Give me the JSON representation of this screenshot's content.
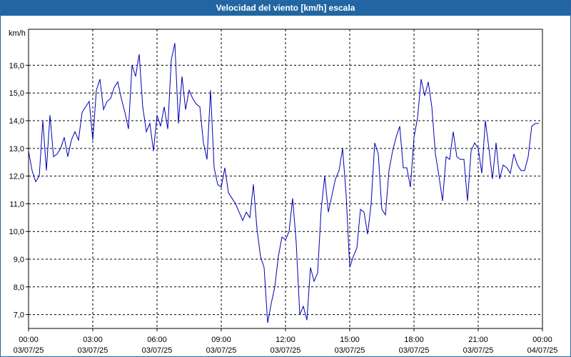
{
  "header": {
    "title": "Velocidad del viento [km/h] escala"
  },
  "chart_data": {
    "type": "line",
    "title": "Velocidad del viento [km/h] escala",
    "ylabel": "km/h",
    "xlabel": "",
    "ylim": [
      6.5,
      17.3
    ],
    "y_ticks": [
      "7,0",
      "8,0",
      "9,0",
      "10,0",
      "11,0",
      "12,0",
      "13,0",
      "14,0",
      "15,0",
      "16,0"
    ],
    "y_tick_values": [
      7,
      8,
      9,
      10,
      11,
      12,
      13,
      14,
      15,
      16
    ],
    "x_ticks": [
      {
        "time": "00:00",
        "date": "03/07/25"
      },
      {
        "time": "03:00",
        "date": "03/07/25"
      },
      {
        "time": "06:00",
        "date": "03/07/25"
      },
      {
        "time": "09:00",
        "date": "03/07/25"
      },
      {
        "time": "12:00",
        "date": "03/07/25"
      },
      {
        "time": "15:00",
        "date": "03/07/25"
      },
      {
        "time": "18:00",
        "date": "03/07/25"
      },
      {
        "time": "21:00",
        "date": "03/07/25"
      },
      {
        "time": "00:00",
        "date": "04/07/25"
      }
    ],
    "grid": true,
    "line_color": "#0000b4",
    "series": [
      {
        "values": [
          [
            "03/07/25 00:00",
            12.9
          ],
          [
            "03/07/25 00:10",
            12.2
          ],
          [
            "03/07/25 00:20",
            11.8
          ],
          [
            "03/07/25 00:30",
            12.0
          ],
          [
            "03/07/25 00:40",
            14.0
          ],
          [
            "03/07/25 00:50",
            12.2
          ],
          [
            "03/07/25 01:00",
            14.2
          ],
          [
            "03/07/25 01:10",
            12.7
          ],
          [
            "03/07/25 01:20",
            12.8
          ],
          [
            "03/07/25 01:30",
            13.0
          ],
          [
            "03/07/25 01:40",
            13.4
          ],
          [
            "03/07/25 01:50",
            12.7
          ],
          [
            "03/07/25 02:00",
            13.3
          ],
          [
            "03/07/25 02:10",
            13.6
          ],
          [
            "03/07/25 02:20",
            13.3
          ],
          [
            "03/07/25 02:30",
            14.3
          ],
          [
            "03/07/25 02:40",
            14.5
          ],
          [
            "03/07/25 02:50",
            14.7
          ],
          [
            "03/07/25 03:00",
            13.3
          ],
          [
            "03/07/25 03:10",
            15.1
          ],
          [
            "03/07/25 03:20",
            15.5
          ],
          [
            "03/07/25 03:30",
            14.4
          ],
          [
            "03/07/25 03:40",
            14.7
          ],
          [
            "03/07/25 03:50",
            14.8
          ],
          [
            "03/07/25 04:00",
            15.2
          ],
          [
            "03/07/25 04:10",
            15.4
          ],
          [
            "03/07/25 04:20",
            14.8
          ],
          [
            "03/07/25 04:30",
            14.3
          ],
          [
            "03/07/25 04:40",
            13.7
          ],
          [
            "03/07/25 04:50",
            16.0
          ],
          [
            "03/07/25 05:00",
            15.6
          ],
          [
            "03/07/25 05:10",
            16.4
          ],
          [
            "03/07/25 05:20",
            14.5
          ],
          [
            "03/07/25 05:30",
            13.6
          ],
          [
            "03/07/25 05:40",
            13.9
          ],
          [
            "03/07/25 05:50",
            12.9
          ],
          [
            "03/07/25 06:00",
            14.2
          ],
          [
            "03/07/25 06:10",
            13.8
          ],
          [
            "03/07/25 06:20",
            14.5
          ],
          [
            "03/07/25 06:30",
            13.7
          ],
          [
            "03/07/25 06:40",
            16.2
          ],
          [
            "03/07/25 06:50",
            16.8
          ],
          [
            "03/07/25 07:00",
            13.9
          ],
          [
            "03/07/25 07:10",
            15.6
          ],
          [
            "03/07/25 07:20",
            14.4
          ],
          [
            "03/07/25 07:30",
            15.1
          ],
          [
            "03/07/25 07:40",
            14.8
          ],
          [
            "03/07/25 07:50",
            14.6
          ],
          [
            "03/07/25 08:00",
            14.5
          ],
          [
            "03/07/25 08:10",
            13.2
          ],
          [
            "03/07/25 08:20",
            12.6
          ],
          [
            "03/07/25 08:30",
            15.1
          ],
          [
            "03/07/25 08:40",
            12.3
          ],
          [
            "03/07/25 08:50",
            11.7
          ],
          [
            "03/07/25 09:00",
            11.6
          ],
          [
            "03/07/25 09:10",
            12.3
          ],
          [
            "03/07/25 09:20",
            11.4
          ],
          [
            "03/07/25 09:30",
            11.2
          ],
          [
            "03/07/25 09:40",
            11.0
          ],
          [
            "03/07/25 09:50",
            10.7
          ],
          [
            "03/07/25 10:00",
            10.4
          ],
          [
            "03/07/25 10:10",
            10.7
          ],
          [
            "03/07/25 10:20",
            10.5
          ],
          [
            "03/07/25 10:30",
            11.7
          ],
          [
            "03/07/25 10:40",
            10.1
          ],
          [
            "03/07/25 10:50",
            9.1
          ],
          [
            "03/07/25 11:00",
            8.7
          ],
          [
            "03/07/25 11:10",
            6.7
          ],
          [
            "03/07/25 11:20",
            7.4
          ],
          [
            "03/07/25 11:30",
            8.0
          ],
          [
            "03/07/25 11:40",
            9.1
          ],
          [
            "03/07/25 11:50",
            9.8
          ],
          [
            "03/07/25 12:00",
            9.7
          ],
          [
            "03/07/25 12:10",
            10.0
          ],
          [
            "03/07/25 12:20",
            11.2
          ],
          [
            "03/07/25 12:30",
            9.6
          ],
          [
            "03/07/25 12:40",
            7.0
          ],
          [
            "03/07/25 12:50",
            7.3
          ],
          [
            "03/07/25 13:00",
            6.8
          ],
          [
            "03/07/25 13:10",
            8.7
          ],
          [
            "03/07/25 13:20",
            8.2
          ],
          [
            "03/07/25 13:30",
            8.5
          ],
          [
            "03/07/25 13:40",
            10.8
          ],
          [
            "03/07/25 13:50",
            12.0
          ],
          [
            "03/07/25 14:00",
            10.7
          ],
          [
            "03/07/25 14:10",
            11.3
          ],
          [
            "03/07/25 14:20",
            11.9
          ],
          [
            "03/07/25 14:30",
            12.2
          ],
          [
            "03/07/25 14:40",
            13.0
          ],
          [
            "03/07/25 14:50",
            11.3
          ],
          [
            "03/07/25 15:00",
            8.7
          ],
          [
            "03/07/25 15:10",
            9.1
          ],
          [
            "03/07/25 15:20",
            9.4
          ],
          [
            "03/07/25 15:30",
            10.8
          ],
          [
            "03/07/25 15:40",
            10.7
          ],
          [
            "03/07/25 15:50",
            9.9
          ],
          [
            "03/07/25 16:00",
            11.0
          ],
          [
            "03/07/25 16:10",
            13.2
          ],
          [
            "03/07/25 16:20",
            12.8
          ],
          [
            "03/07/25 16:30",
            10.8
          ],
          [
            "03/07/25 16:40",
            10.6
          ],
          [
            "03/07/25 16:50",
            12.2
          ],
          [
            "03/07/25 17:00",
            12.9
          ],
          [
            "03/07/25 17:10",
            13.4
          ],
          [
            "03/07/25 17:20",
            13.8
          ],
          [
            "03/07/25 17:30",
            12.3
          ],
          [
            "03/07/25 17:40",
            12.3
          ],
          [
            "03/07/25 17:50",
            11.6
          ],
          [
            "03/07/25 18:00",
            13.4
          ],
          [
            "03/07/25 18:10",
            14.1
          ],
          [
            "03/07/25 18:20",
            15.5
          ],
          [
            "03/07/25 18:30",
            14.9
          ],
          [
            "03/07/25 18:40",
            15.4
          ],
          [
            "03/07/25 18:50",
            14.5
          ],
          [
            "03/07/25 19:00",
            12.8
          ],
          [
            "03/07/25 19:10",
            12.0
          ],
          [
            "03/07/25 19:20",
            11.1
          ],
          [
            "03/07/25 19:30",
            12.7
          ],
          [
            "03/07/25 19:40",
            12.6
          ],
          [
            "03/07/25 19:50",
            13.6
          ],
          [
            "03/07/25 20:00",
            12.7
          ],
          [
            "03/07/25 20:10",
            12.6
          ],
          [
            "03/07/25 20:20",
            12.6
          ],
          [
            "03/07/25 20:30",
            11.1
          ],
          [
            "03/07/25 20:40",
            12.9
          ],
          [
            "03/07/25 20:50",
            13.2
          ],
          [
            "03/07/25 21:00",
            13.0
          ],
          [
            "03/07/25 21:10",
            12.1
          ],
          [
            "03/07/25 21:20",
            14.0
          ],
          [
            "03/07/25 21:30",
            13.0
          ],
          [
            "03/07/25 21:40",
            11.9
          ],
          [
            "03/07/25 21:50",
            13.2
          ],
          [
            "03/07/25 22:00",
            11.9
          ],
          [
            "03/07/25 22:10",
            12.4
          ],
          [
            "03/07/25 22:20",
            12.3
          ],
          [
            "03/07/25 22:30",
            12.1
          ],
          [
            "03/07/25 22:40",
            12.8
          ],
          [
            "03/07/25 22:50",
            12.4
          ],
          [
            "03/07/25 23:00",
            12.2
          ],
          [
            "03/07/25 23:10",
            12.2
          ],
          [
            "03/07/25 23:20",
            12.7
          ],
          [
            "03/07/25 23:30",
            13.8
          ],
          [
            "03/07/25 23:40",
            13.9
          ],
          [
            "03/07/25 23:50",
            13.9
          ]
        ]
      }
    ]
  }
}
